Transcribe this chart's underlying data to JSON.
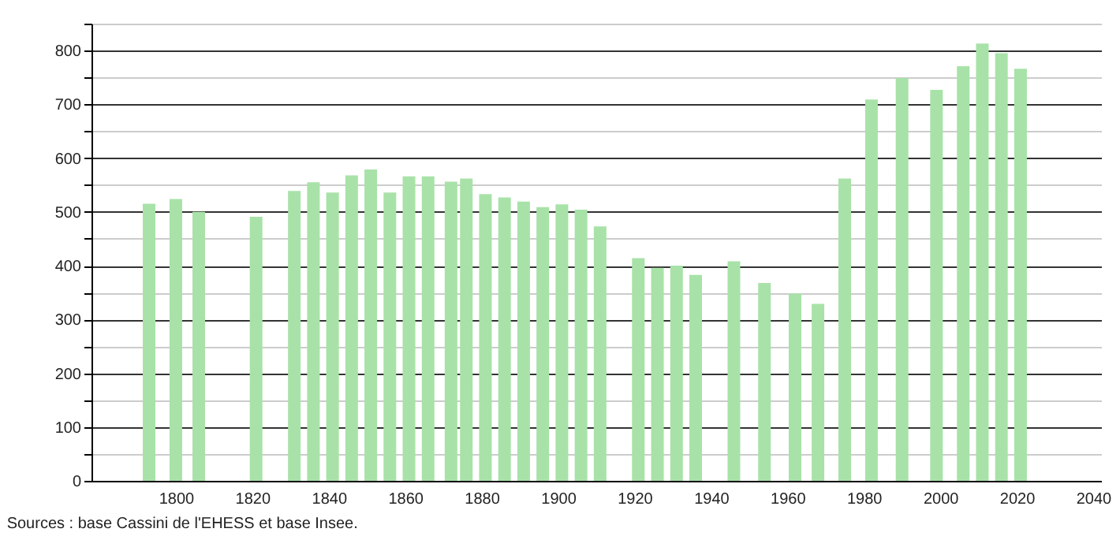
{
  "chart_data": {
    "type": "bar",
    "x": [
      1793,
      1800,
      1806,
      1821,
      1831,
      1836,
      1841,
      1846,
      1851,
      1856,
      1861,
      1866,
      1872,
      1876,
      1881,
      1886,
      1891,
      1896,
      1901,
      1906,
      1911,
      1921,
      1926,
      1931,
      1936,
      1946,
      1954,
      1962,
      1968,
      1975,
      1982,
      1990,
      1999,
      2006,
      2011,
      2016,
      2021
    ],
    "values": [
      515,
      524,
      500,
      491,
      539,
      555,
      536,
      568,
      579,
      536,
      566,
      566,
      556,
      562,
      533,
      527,
      519,
      509,
      514,
      504,
      473,
      414,
      396,
      400,
      383,
      408,
      368,
      348,
      329,
      562,
      709,
      749,
      727,
      771,
      813,
      795,
      766
    ],
    "color": "#a8e2a8",
    "xlim": [
      1780,
      2040
    ],
    "xticks": [
      1800,
      1820,
      1840,
      1860,
      1880,
      1900,
      1920,
      1940,
      1960,
      1980,
      2000,
      2020,
      2040
    ],
    "ylim": [
      0,
      850
    ],
    "yticks": [
      0,
      {
        "value": 50,
        "label": null
      },
      100,
      {
        "value": 150,
        "label": null
      },
      200,
      {
        "value": 250,
        "label": null
      },
      300,
      {
        "value": 350,
        "label": null
      },
      400,
      {
        "value": 450,
        "label": null
      },
      500,
      {
        "value": 550,
        "label": null
      },
      600,
      {
        "value": 650,
        "label": null
      },
      700,
      {
        "value": 750,
        "label": null
      },
      800,
      {
        "value": 850,
        "label": null
      }
    ],
    "grid": "y",
    "annotations": [
      "Sources : base Cassini de l'EHESS et base Insee."
    ]
  }
}
